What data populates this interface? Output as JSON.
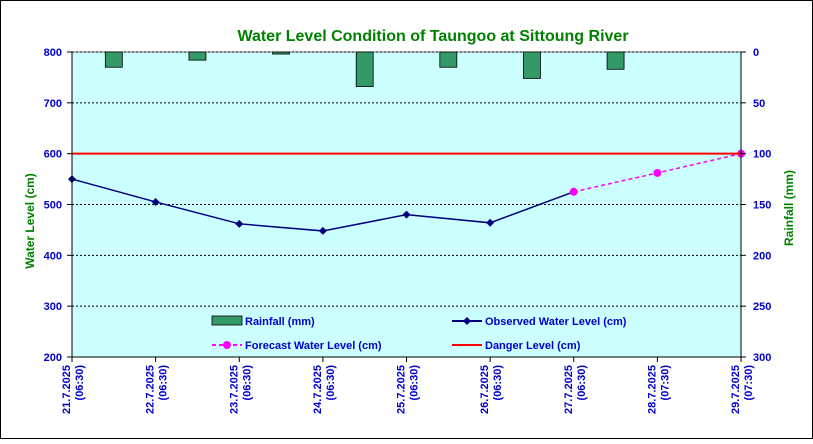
{
  "chart_data": {
    "type": "line",
    "title": "Water Level Condition of Taungoo at  Sittoung River",
    "ylabel": "Water Level (cm)",
    "y2label": "Rainfall (mm)",
    "xlabel": "",
    "categories": [
      [
        "21.7.2025",
        "(06:30)"
      ],
      [
        "22.7.2025",
        "(06:30)"
      ],
      [
        "23.7.2025",
        "(06:30)"
      ],
      [
        "24.7.2025",
        "(06:30)"
      ],
      [
        "25.7.2025",
        "(06:30)"
      ],
      [
        "26.7.2025",
        "(06:30)"
      ],
      [
        "27.7.2025",
        "(06:30)"
      ],
      [
        "28.7.2025",
        "(07:30)"
      ],
      [
        "29.7.2025",
        "(07:30)"
      ]
    ],
    "ylim": [
      200,
      800
    ],
    "yticks": [
      200,
      300,
      400,
      500,
      600,
      700,
      800
    ],
    "y2lim": [
      0,
      300
    ],
    "y2ticks": [
      0,
      50,
      100,
      150,
      200,
      250,
      300
    ],
    "y2_inverted": true,
    "grid": true,
    "series": [
      {
        "name": "Rainfall (mm)",
        "kind": "bar",
        "axis": "right",
        "color": "#339966",
        "values": [
          15,
          8,
          2,
          34,
          15,
          26,
          17,
          null,
          null
        ]
      },
      {
        "name": "Observed Water Level (cm)",
        "kind": "line",
        "axis": "left",
        "color": "#000080",
        "marker": "diamond",
        "values": [
          550,
          505,
          462,
          448,
          480,
          464,
          525,
          null,
          null
        ]
      },
      {
        "name": "Forecast Water Level (cm)",
        "kind": "line",
        "axis": "left",
        "color": "#FF00FF",
        "marker": "circle",
        "dashed": true,
        "values": [
          null,
          null,
          null,
          null,
          null,
          null,
          525,
          562,
          600
        ]
      },
      {
        "name": "Danger Level (cm)",
        "kind": "line",
        "axis": "left",
        "color": "#FF0000",
        "values": [
          600,
          600,
          600,
          600,
          600,
          600,
          600,
          600,
          600
        ]
      }
    ],
    "legend": [
      "Rainfall (mm)",
      "Observed Water Level (cm)",
      "Forecast Water Level (cm)",
      "Danger Level (cm)"
    ],
    "legend_position": "bottom-inside",
    "colors": {
      "plot_background": "#CCFFFF",
      "title": "#008000",
      "axis_label": "#008000",
      "tick_label": "#0000CC"
    }
  }
}
